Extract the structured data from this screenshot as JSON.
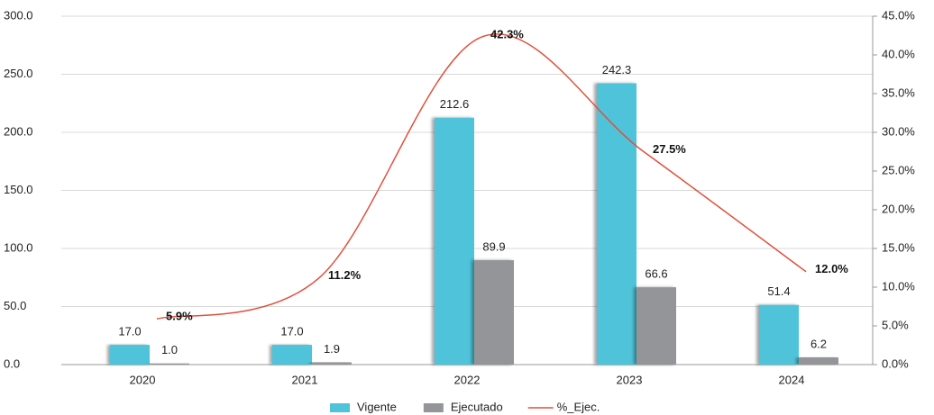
{
  "chart_data": {
    "type": "bar",
    "categories": [
      "2020",
      "2021",
      "2022",
      "2023",
      "2024"
    ],
    "series": [
      {
        "name": "Vigente",
        "color": "#4fc3d9",
        "values": [
          17,
          17,
          212.6,
          242.3,
          51.4
        ],
        "value_labels": [
          "17.0",
          "17.0",
          "212.6",
          "242.3",
          "51.4"
        ]
      },
      {
        "name": "Ejecutado",
        "color": "#939598",
        "values": [
          1,
          1.9,
          89.9,
          66.6,
          6.2
        ],
        "value_labels": [
          "1.0",
          "1.9",
          "89.9",
          "66.6",
          "6.2"
        ]
      },
      {
        "name": "%_Ejec.",
        "type": "line",
        "axis": "y2",
        "color": "#e0503c",
        "values": [
          5.9,
          11.2,
          42.3,
          27.5,
          12.0
        ],
        "value_labels": [
          "5.9%",
          "11.2%",
          "42.3%",
          "27.5%",
          "12.0%"
        ]
      }
    ],
    "ylim": [
      0,
      300
    ],
    "yticks": [
      {
        "value": 0,
        "label": "0.0"
      },
      {
        "value": 50,
        "label": "50.0"
      },
      {
        "value": 100,
        "label": "100.0"
      },
      {
        "value": 150,
        "label": "150.0"
      },
      {
        "value": 200,
        "label": "200.0"
      },
      {
        "value": 250,
        "label": "250.0"
      },
      {
        "value": 300,
        "label": "300.0"
      }
    ],
    "y2lim": [
      0,
      45
    ],
    "y2ticks": [
      {
        "value": 0,
        "label": "0.0%"
      },
      {
        "value": 5,
        "label": "5.0%"
      },
      {
        "value": 10,
        "label": "10.0%"
      },
      {
        "value": 15,
        "label": "15.0%"
      },
      {
        "value": 20,
        "label": "20.0%"
      },
      {
        "value": 25,
        "label": "25.0%"
      },
      {
        "value": 30,
        "label": "30.0%"
      },
      {
        "value": 35,
        "label": "35.0%"
      },
      {
        "value": 40,
        "label": "40.0%"
      },
      {
        "value": 45,
        "label": "45.0%"
      }
    ],
    "grid": true,
    "legend": "bottom"
  }
}
